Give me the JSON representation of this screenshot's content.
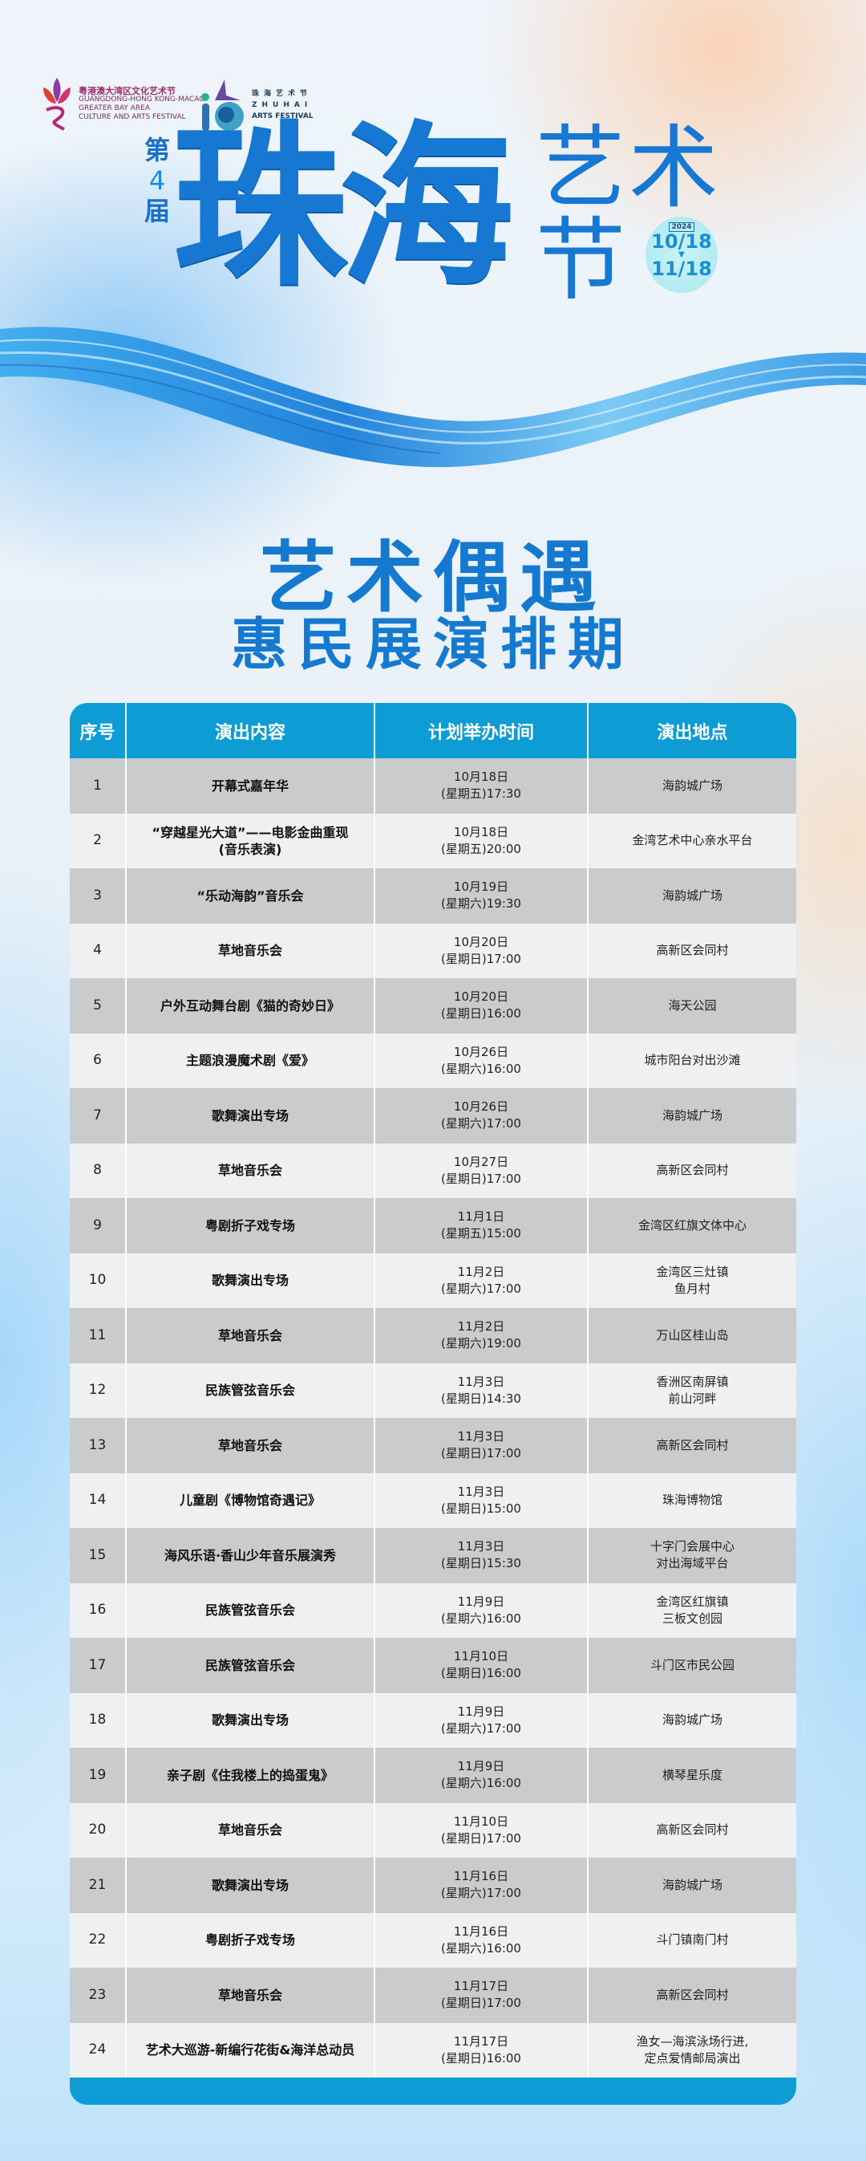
{
  "logos": {
    "gba": {
      "cn": "粤港澳大湾区文化艺术节",
      "en1": "GUANGDONG-HONG KONG-MACAO",
      "en2": "GREATER BAY AREA",
      "en3": "CULTURE AND ARTS FESTIVAL"
    },
    "zhuhai": {
      "cn": "珠海艺术节",
      "en1": "ZHUHAI",
      "en2": "ARTS FESTIVAL"
    }
  },
  "hero": {
    "edition_pre": "第",
    "edition_num": "4",
    "edition_post": "届",
    "title_main": "珠海",
    "title_art": "艺术",
    "title_jie": "节",
    "year": "2024",
    "date_start": "10/18",
    "date_end": "11/18",
    "accent": "#1778d4"
  },
  "heading": {
    "line1": "艺术偶遇",
    "line2": "惠民展演排期"
  },
  "table": {
    "columns": [
      "序号",
      "演出内容",
      "计划举办时间",
      "演出地点"
    ],
    "header_color": "#0d9dd4",
    "rows": [
      [
        "1",
        "开幕式嘉年华",
        "10月18日\n(星期五)17:30",
        "海韵城广场"
      ],
      [
        "2",
        "“穿越星光大道”——电影金曲重现\n(音乐表演)",
        "10月18日\n(星期五)20:00",
        "金湾艺术中心亲水平台"
      ],
      [
        "3",
        "“乐动海韵”音乐会",
        "10月19日\n(星期六)19:30",
        "海韵城广场"
      ],
      [
        "4",
        "草地音乐会",
        "10月20日\n(星期日)17:00",
        "高新区会同村"
      ],
      [
        "5",
        "户外互动舞台剧《猫的奇妙日》",
        "10月20日\n(星期日)16:00",
        "海天公园"
      ],
      [
        "6",
        "主题浪漫魔术剧《爱》",
        "10月26日\n(星期六)16:00",
        "城市阳台对出沙滩"
      ],
      [
        "7",
        "歌舞演出专场",
        "10月26日\n(星期六)17:00",
        "海韵城广场"
      ],
      [
        "8",
        "草地音乐会",
        "10月27日\n(星期日)17:00",
        "高新区会同村"
      ],
      [
        "9",
        "粤剧折子戏专场",
        "11月1日\n(星期五)15:00",
        "金湾区红旗文体中心"
      ],
      [
        "10",
        "歌舞演出专场",
        "11月2日\n(星期六)17:00",
        "金湾区三灶镇\n鱼月村"
      ],
      [
        "11",
        "草地音乐会",
        "11月2日\n(星期六)19:00",
        "万山区桂山岛"
      ],
      [
        "12",
        "民族管弦音乐会",
        "11月3日\n(星期日)14:30",
        "香洲区南屏镇\n前山河畔"
      ],
      [
        "13",
        "草地音乐会",
        "11月3日\n(星期日)17:00",
        "高新区会同村"
      ],
      [
        "14",
        "儿童剧《博物馆奇遇记》",
        "11月3日\n(星期日)15:00",
        "珠海博物馆"
      ],
      [
        "15",
        "海风乐语·香山少年音乐展演秀",
        "11月3日\n(星期日)15:30",
        "十字门会展中心\n对出海域平台"
      ],
      [
        "16",
        "民族管弦音乐会",
        "11月9日\n(星期六)16:00",
        "金湾区红旗镇\n三板文创园"
      ],
      [
        "17",
        "民族管弦音乐会",
        "11月10日\n(星期日)16:00",
        "斗门区市民公园"
      ],
      [
        "18",
        "歌舞演出专场",
        "11月9日\n(星期六)17:00",
        "海韵城广场"
      ],
      [
        "19",
        "亲子剧《住我楼上的捣蛋鬼》",
        "11月9日\n(星期六)16:00",
        "横琴星乐度"
      ],
      [
        "20",
        "草地音乐会",
        "11月10日\n(星期日)17:00",
        "高新区会同村"
      ],
      [
        "21",
        "歌舞演出专场",
        "11月16日\n(星期六)17:00",
        "海韵城广场"
      ],
      [
        "22",
        "粤剧折子戏专场",
        "11月16日\n(星期六)16:00",
        "斗门镇南门村"
      ],
      [
        "23",
        "草地音乐会",
        "11月17日\n(星期日)17:00",
        "高新区会同村"
      ],
      [
        "24",
        "艺术大巡游-新编行花街&海洋总动员",
        "11月17日\n(星期日)16:00",
        "渔女—海滨泳场行进,\n定点爱情邮局演出"
      ]
    ]
  }
}
